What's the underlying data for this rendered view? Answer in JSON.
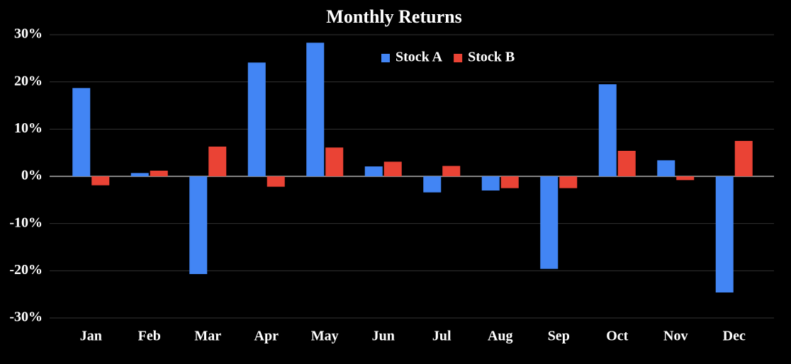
{
  "chart_data": {
    "type": "bar",
    "title": "Monthly Returns",
    "categories": [
      "Jan",
      "Feb",
      "Mar",
      "Apr",
      "May",
      "Jun",
      "Jul",
      "Aug",
      "Sep",
      "Oct",
      "Nov",
      "Dec"
    ],
    "series": [
      {
        "name": "Stock A",
        "color": "#4285f4",
        "values": [
          18.7,
          0.7,
          -20.7,
          24.1,
          28.3,
          2.1,
          -3.4,
          -3.0,
          -19.6,
          19.5,
          3.4,
          -24.6
        ]
      },
      {
        "name": "Stock B",
        "color": "#ea4335",
        "values": [
          -1.9,
          1.2,
          6.3,
          -2.2,
          6.1,
          3.1,
          2.2,
          -2.5,
          -2.5,
          5.4,
          -0.8,
          7.5
        ]
      }
    ],
    "ylim": [
      -30,
      30
    ],
    "yticks": [
      {
        "value": -30,
        "label": "-30%"
      },
      {
        "value": -20,
        "label": "-20%"
      },
      {
        "value": -10,
        "label": "-10%"
      },
      {
        "value": 0,
        "label": "0%"
      },
      {
        "value": 10,
        "label": "10%"
      },
      {
        "value": 20,
        "label": "20%"
      },
      {
        "value": 30,
        "label": "30%"
      }
    ],
    "grid": true,
    "legend": "top"
  }
}
